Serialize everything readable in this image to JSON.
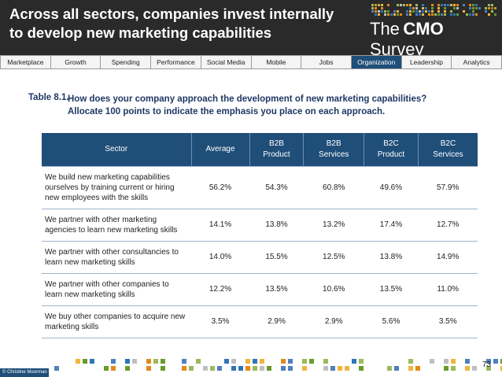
{
  "header": {
    "title_line1": "Across all sectors, companies invest internally",
    "title_line2": "to develop new marketing capabilities",
    "logo_the": "The",
    "logo_cmo": "CMO",
    "logo_survey": "Survey"
  },
  "nav": {
    "tabs": [
      "Marketplace",
      "Growth",
      "Spending",
      "Performance",
      "Social Media",
      "Mobile",
      "Jobs",
      "Organization",
      "Leadership",
      "Analytics"
    ],
    "active": "Organization"
  },
  "question": {
    "number": "Table 8.1.",
    "line1": "How does your company approach the development of new marketing capabilities?",
    "line2": "Allocate 100 points to indicate the emphasis you place on each approach."
  },
  "table": {
    "headers": [
      "Sector",
      "Average",
      "B2B\nProduct",
      "B2B\nServices",
      "B2C\nProduct",
      "B2C\nServices"
    ],
    "rows": [
      {
        "label": "We build new marketing capabilities ourselves by training current or hiring new employees with the skills",
        "values": [
          "56.2%",
          "54.3%",
          "60.8%",
          "49.6%",
          "57.9%"
        ]
      },
      {
        "label": "We partner with other marketing agencies to learn new marketing skills",
        "values": [
          "14.1%",
          "13.8%",
          "13.2%",
          "17.4%",
          "12.7%"
        ]
      },
      {
        "label": "We partner with other consultancies to learn new marketing skills",
        "values": [
          "14.0%",
          "15.5%",
          "12.5%",
          "13.8%",
          "14.9%"
        ]
      },
      {
        "label": "We partner with other companies to learn new marketing skills",
        "values": [
          "12.2%",
          "13.5%",
          "10.6%",
          "13.5%",
          "11.0%"
        ]
      },
      {
        "label": "We buy other companies to acquire new marketing skills",
        "values": [
          "3.5%",
          "2.9%",
          "2.9%",
          "5.6%",
          "3.5%"
        ]
      }
    ]
  },
  "footer": {
    "copyright": "© Christine Moorman",
    "page": "73"
  },
  "colors": {
    "header_bg": "#2a2a2a",
    "nav_active": "#1f4e79",
    "table_header": "#1f4e79",
    "accent_green": "#6a9a2a",
    "accent_orange": "#e48a1b",
    "accent_blue": "#2e75b6"
  }
}
